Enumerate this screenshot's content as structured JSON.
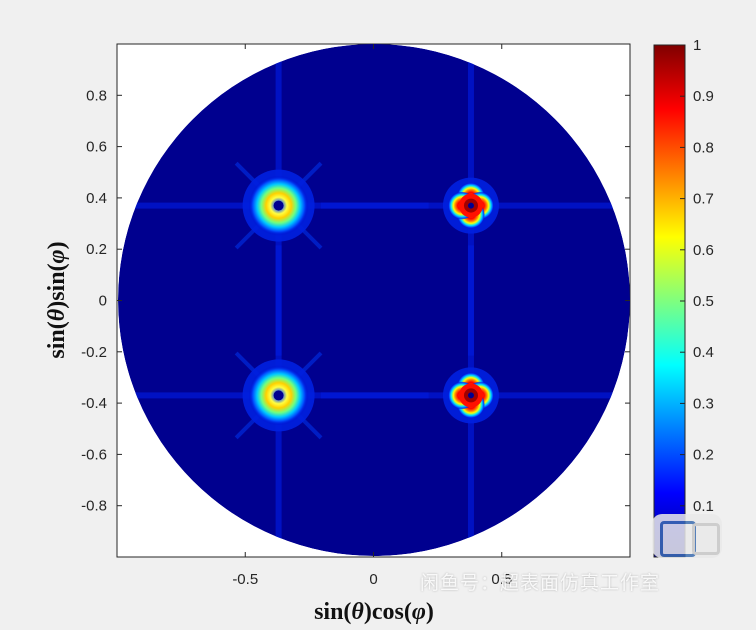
{
  "chart_data": {
    "type": "heatmap",
    "title": "",
    "xlabel_parts": [
      "sin(",
      "θ",
      ")cos(",
      "φ",
      ")"
    ],
    "ylabel_parts": [
      "sin(",
      "θ",
      ")sin(",
      "φ",
      ")"
    ],
    "xlim": [
      -1,
      1
    ],
    "ylim": [
      -1,
      1
    ],
    "x_ticks": [
      "-0.5",
      "0",
      "0.5"
    ],
    "x_tick_values": [
      -0.5,
      0,
      0.5
    ],
    "y_ticks": [
      "0.8",
      "0.6",
      "0.4",
      "0.2",
      "0",
      "-0.2",
      "-0.4",
      "-0.6",
      "-0.8"
    ],
    "y_tick_values": [
      0.8,
      0.6,
      0.4,
      0.2,
      0,
      -0.2,
      -0.4,
      -0.6,
      -0.8
    ],
    "colorbar": {
      "colormap": "jet",
      "range": [
        0,
        1
      ],
      "ticks": [
        "1",
        "0.9",
        "0.8",
        "0.7",
        "0.6",
        "0.5",
        "0.4",
        "0.3",
        "0.2",
        "0.1"
      ],
      "tick_values": [
        1,
        0.9,
        0.8,
        0.7,
        0.6,
        0.5,
        0.4,
        0.3,
        0.2,
        0.1
      ]
    },
    "beams": [
      {
        "x": -0.37,
        "y": 0.37,
        "peak": 0.6,
        "shape": "ring"
      },
      {
        "x": -0.37,
        "y": -0.37,
        "peak": 0.6,
        "shape": "ring"
      },
      {
        "x": 0.38,
        "y": 0.37,
        "peak": 1.0,
        "shape": "clover"
      },
      {
        "x": 0.38,
        "y": -0.37,
        "peak": 1.0,
        "shape": "clover"
      }
    ],
    "background_value": 0.08,
    "colors": {
      "background": "#00008f",
      "low": "#0000c8",
      "mid": "#00ffff",
      "high": "#ff0000",
      "peak": "#800000"
    }
  },
  "watermark": {
    "text": "闲鱼号：超表面仿真工作室"
  }
}
